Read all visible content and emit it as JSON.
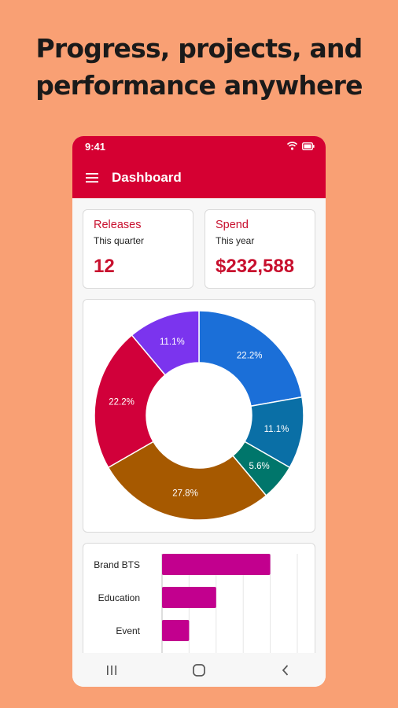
{
  "headline": {
    "line1": "Progress, projects, and",
    "line2": "performance anywhere"
  },
  "status_bar": {
    "time": "9:41",
    "icons": [
      "wifi-icon",
      "battery-icon"
    ]
  },
  "app_bar": {
    "title": "Dashboard",
    "menu_icon": "hamburger-menu-icon",
    "color": "#D50032"
  },
  "stats": [
    {
      "title": "Releases",
      "subtitle": "This quarter",
      "value": "12"
    },
    {
      "title": "Spend",
      "subtitle": "This year",
      "value": "$232,588"
    }
  ],
  "navigation": {
    "icons": [
      "recent-apps-icon",
      "home-icon",
      "back-icon"
    ]
  },
  "chart_data": [
    {
      "type": "pie",
      "donut": true,
      "slices": [
        {
          "label": "22.2%",
          "value": 22.2,
          "color": "#1B6FD8"
        },
        {
          "label": "11.1%",
          "value": 11.1,
          "color": "#0A6FA6"
        },
        {
          "label": "5.6%",
          "value": 5.6,
          "color": "#00766B"
        },
        {
          "label": "27.8%",
          "value": 27.8,
          "color": "#A65900"
        },
        {
          "label": "22.2%",
          "value": 22.2,
          "color": "#D1003A"
        },
        {
          "label": "11.1%",
          "value": 11.1,
          "color": "#7B34EE"
        }
      ]
    },
    {
      "type": "bar",
      "orientation": "horizontal",
      "categories": [
        "Brand BTS",
        "Education",
        "Event"
      ],
      "values": [
        4,
        2,
        1
      ],
      "xlim": [
        0,
        5
      ],
      "color": "#C2008E",
      "grid": true
    }
  ]
}
